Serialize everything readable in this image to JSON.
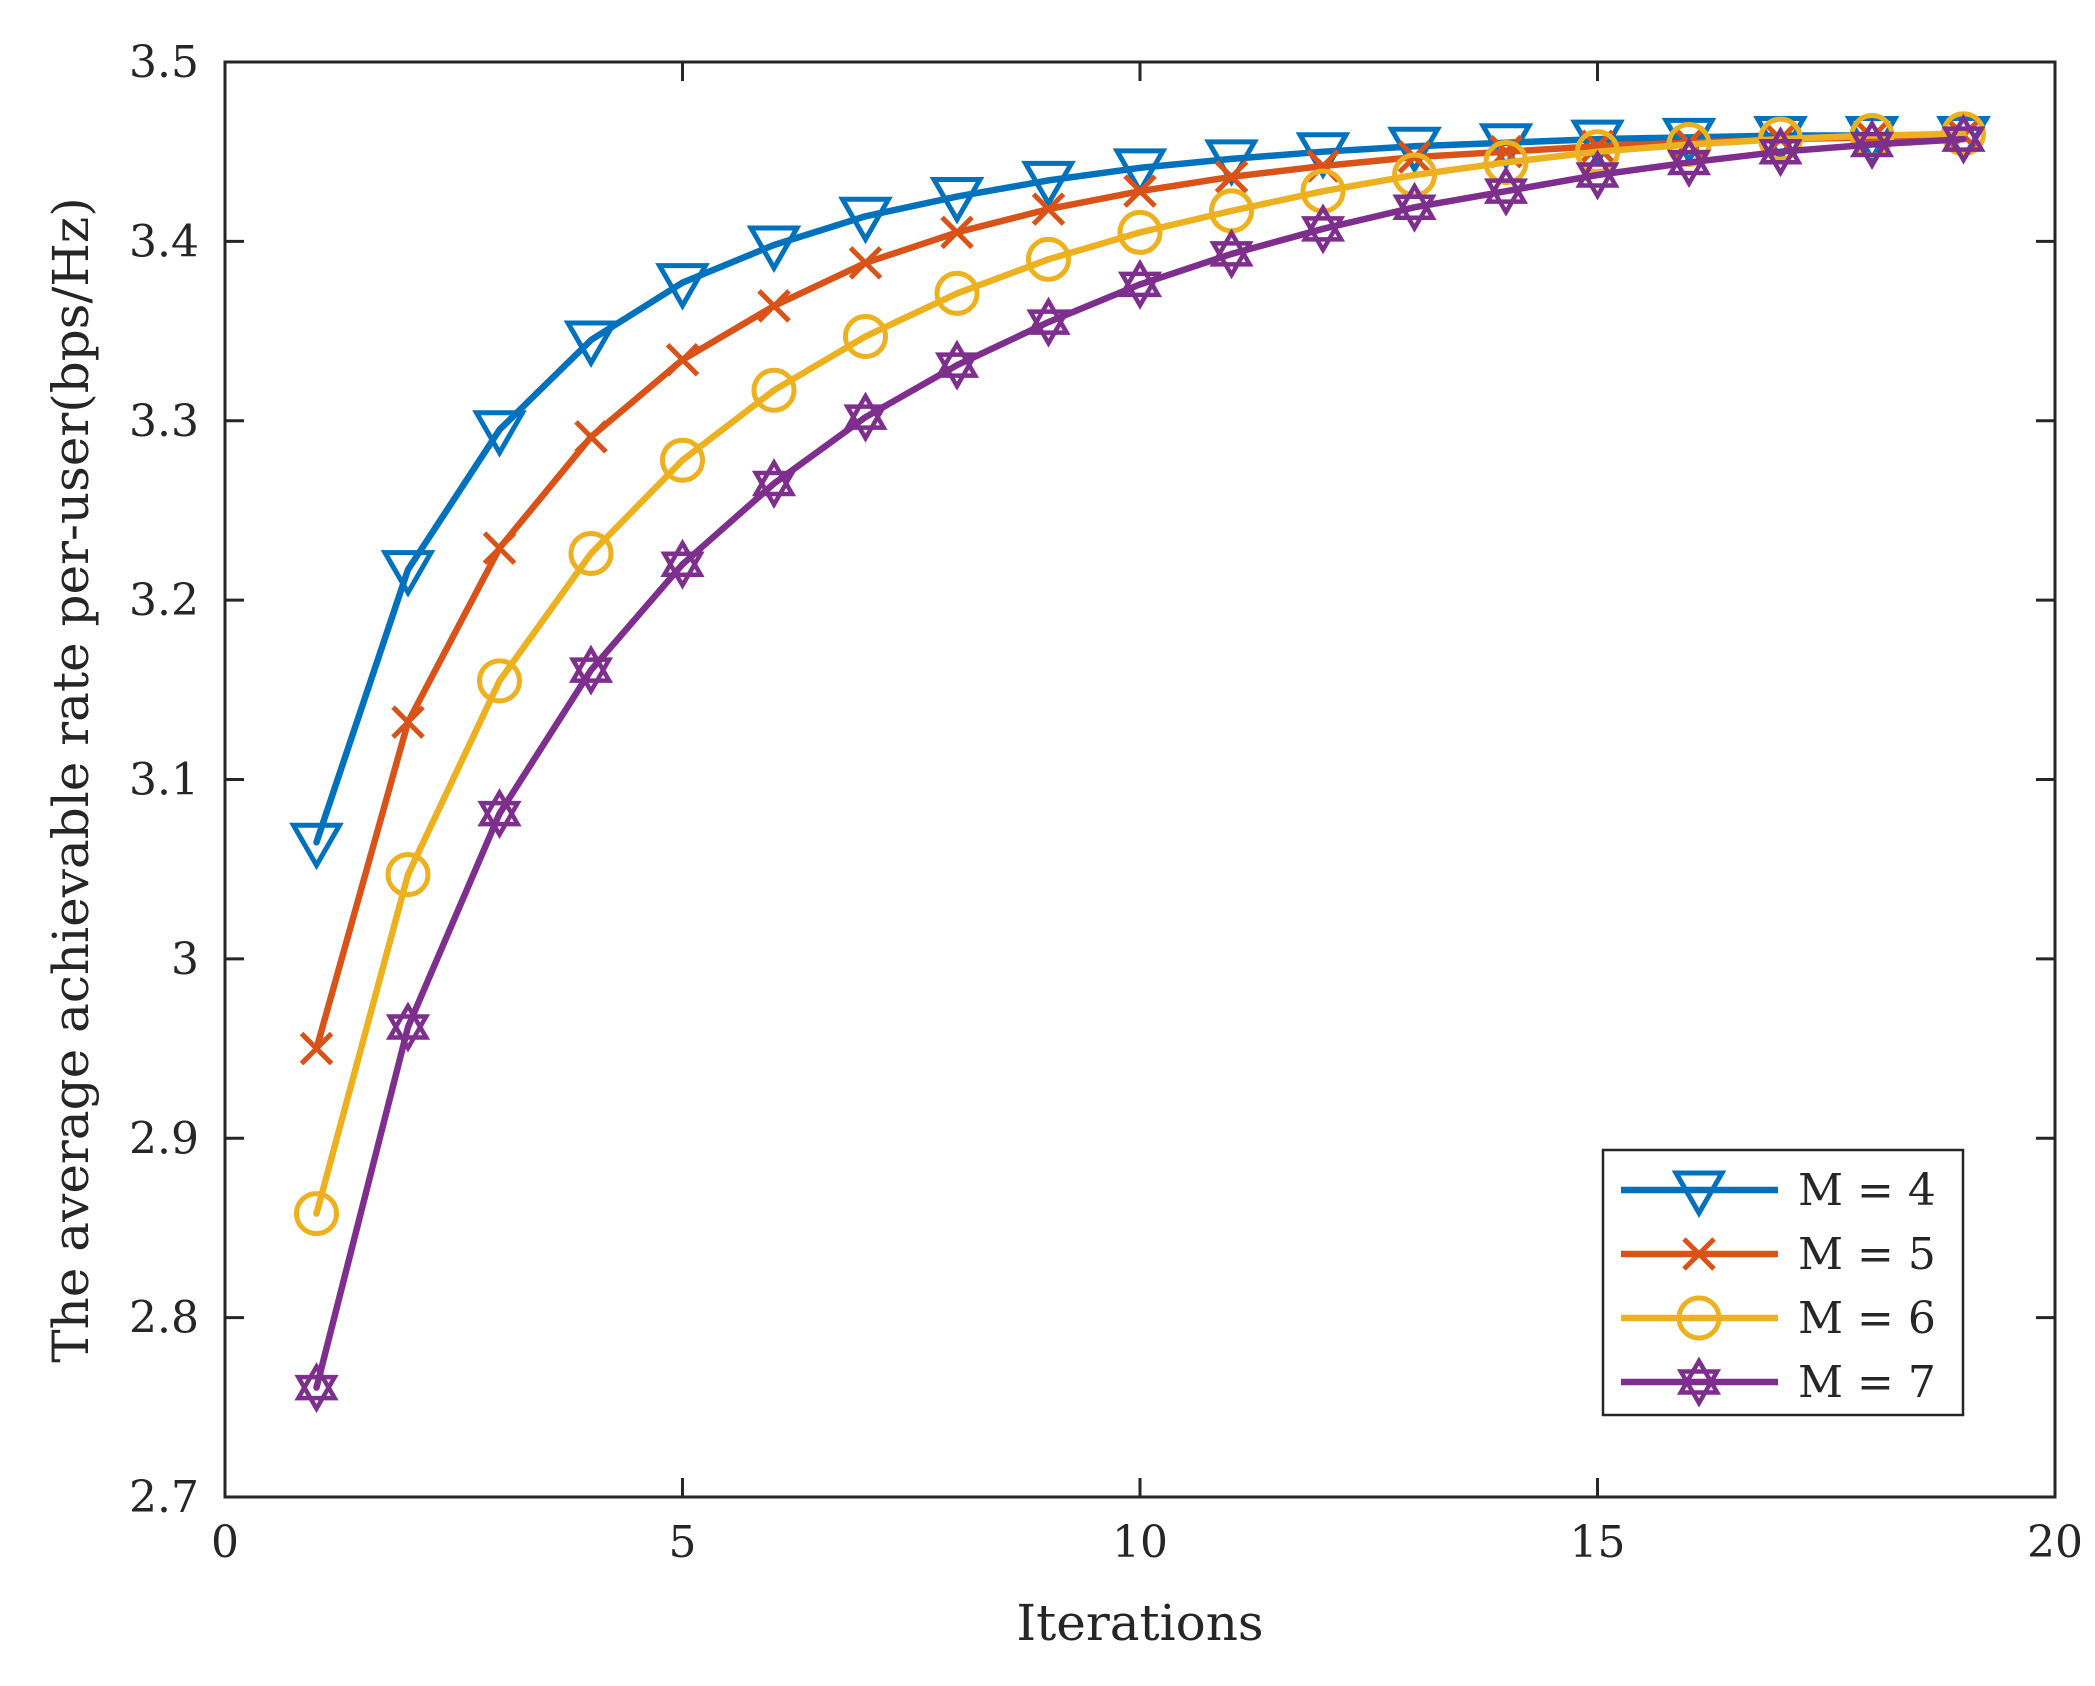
{
  "chart_data": {
    "type": "line",
    "title": "",
    "xlabel": "Iterations",
    "ylabel": "The average achievable rate per-user(bps/Hz)",
    "xlim": [
      0,
      20
    ],
    "ylim": [
      2.7,
      3.5
    ],
    "xticks": [
      0,
      5,
      10,
      15,
      20
    ],
    "xtick_labels": [
      "0",
      "5",
      "10",
      "15",
      "20"
    ],
    "yticks": [
      2.7,
      2.8,
      2.9,
      3.0,
      3.1,
      3.2,
      3.3,
      3.4,
      3.5
    ],
    "ytick_labels": [
      "2.7",
      "2.8",
      "2.9",
      "3",
      "3.1",
      "3.2",
      "3.3",
      "3.4",
      "3.5"
    ],
    "grid": false,
    "legend_position": "bottom-right",
    "x": [
      1,
      2,
      3,
      4,
      5,
      6,
      7,
      8,
      9,
      10,
      11,
      12,
      13,
      14,
      15,
      16,
      17,
      18,
      19
    ],
    "series": [
      {
        "name": "M = 4",
        "color": "#0072BD",
        "marker": "triangle-down",
        "values": [
          3.065,
          3.217,
          3.295,
          3.345,
          3.377,
          3.398,
          3.414,
          3.425,
          3.434,
          3.441,
          3.446,
          3.45,
          3.453,
          3.455,
          3.457,
          3.458,
          3.459,
          3.459,
          3.459
        ]
      },
      {
        "name": "M = 5",
        "color": "#D95319",
        "marker": "x",
        "values": [
          2.95,
          3.132,
          3.229,
          3.291,
          3.334,
          3.364,
          3.388,
          3.405,
          3.418,
          3.428,
          3.436,
          3.442,
          3.447,
          3.45,
          3.453,
          3.455,
          3.457,
          3.458,
          3.459
        ]
      },
      {
        "name": "M = 6",
        "color": "#EDB120",
        "marker": "circle",
        "values": [
          2.858,
          3.047,
          3.155,
          3.226,
          3.278,
          3.317,
          3.347,
          3.371,
          3.39,
          3.405,
          3.417,
          3.428,
          3.437,
          3.444,
          3.45,
          3.454,
          3.457,
          3.459,
          3.46
        ]
      },
      {
        "name": "M = 7",
        "color": "#7E2F8E",
        "marker": "hexagram",
        "values": [
          2.761,
          2.962,
          3.081,
          3.161,
          3.22,
          3.265,
          3.302,
          3.331,
          3.355,
          3.376,
          3.393,
          3.407,
          3.419,
          3.428,
          3.437,
          3.444,
          3.45,
          3.454,
          3.457
        ]
      }
    ]
  }
}
